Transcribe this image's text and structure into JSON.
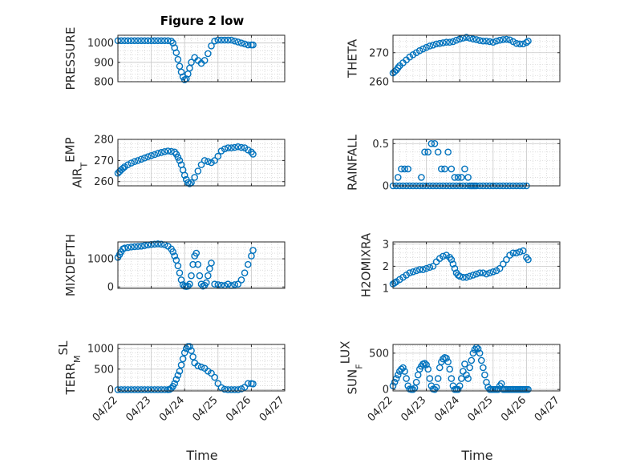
{
  "figure": {
    "title": "Figure 2 low",
    "xlabel": "Time"
  },
  "x_ticks": [
    "04/22",
    "04/23",
    "04/24",
    "04/25",
    "04/26",
    "04/27"
  ],
  "style": {
    "marker_color": "#0072BD",
    "grid_color": "#c8c8c8",
    "axis_color": "#262626"
  },
  "chart_data": [
    {
      "type": "scatter",
      "ylabel": "PRESSURE",
      "ylim": [
        800,
        1040
      ],
      "yticks": [
        800,
        900,
        1000
      ],
      "grid": true,
      "x": [
        0.0,
        0.1,
        0.2,
        0.3,
        0.4,
        0.5,
        0.6,
        0.7,
        0.8,
        0.9,
        1.0,
        1.1,
        1.2,
        1.3,
        1.4,
        1.5,
        1.6,
        1.65,
        1.7,
        1.75,
        1.8,
        1.85,
        1.9,
        1.95,
        2.0,
        2.05,
        2.1,
        2.15,
        2.2,
        2.3,
        2.4,
        2.5,
        2.6,
        2.7,
        2.8,
        2.9,
        3.0,
        3.1,
        3.2,
        3.3,
        3.4,
        3.5,
        3.6,
        3.7,
        3.8,
        3.9,
        4.0,
        4.05
      ],
      "y": [
        1012,
        1012,
        1012,
        1012,
        1012,
        1012,
        1012,
        1012,
        1012,
        1012,
        1012,
        1012,
        1012,
        1012,
        1012,
        1012,
        1010,
        1000,
        975,
        950,
        915,
        880,
        850,
        825,
        810,
        815,
        840,
        870,
        900,
        925,
        910,
        895,
        910,
        945,
        985,
        1010,
        1015,
        1015,
        1015,
        1015,
        1015,
        1010,
        1005,
        1000,
        995,
        990,
        990,
        990
      ]
    },
    {
      "type": "scatter",
      "ylabel": "THETA",
      "ylim": [
        260,
        276
      ],
      "yticks": [
        260,
        270
      ],
      "grid": true,
      "x": [
        0.0,
        0.05,
        0.1,
        0.15,
        0.2,
        0.3,
        0.4,
        0.5,
        0.6,
        0.7,
        0.8,
        0.9,
        1.0,
        1.1,
        1.2,
        1.3,
        1.4,
        1.5,
        1.6,
        1.7,
        1.8,
        1.9,
        2.0,
        2.1,
        2.2,
        2.3,
        2.4,
        2.5,
        2.6,
        2.7,
        2.8,
        2.9,
        3.0,
        3.1,
        3.2,
        3.3,
        3.4,
        3.5,
        3.6,
        3.7,
        3.8,
        3.9,
        4.0,
        4.05
      ],
      "y": [
        263,
        263.5,
        264,
        264.8,
        265.5,
        266.5,
        267.5,
        268.5,
        269.3,
        270,
        270.7,
        271.3,
        271.8,
        272.3,
        272.6,
        273,
        273.2,
        273.4,
        273.6,
        273.6,
        273.8,
        274.3,
        274.7,
        275,
        275.3,
        275,
        274.7,
        274.5,
        274.2,
        274,
        274,
        273.8,
        273.6,
        274,
        274.3,
        274.5,
        274.6,
        274.4,
        273.8,
        273.2,
        273,
        273,
        273.5,
        274
      ]
    },
    {
      "type": "scatter",
      "ylabel": "AIR_TEMP",
      "ylim": [
        258,
        280
      ],
      "yticks": [
        260,
        270,
        280
      ],
      "grid": true,
      "x": [
        0.0,
        0.05,
        0.1,
        0.15,
        0.2,
        0.3,
        0.4,
        0.5,
        0.6,
        0.7,
        0.8,
        0.9,
        1.0,
        1.1,
        1.2,
        1.3,
        1.4,
        1.5,
        1.6,
        1.7,
        1.75,
        1.8,
        1.85,
        1.9,
        1.95,
        2.0,
        2.05,
        2.1,
        2.15,
        2.2,
        2.3,
        2.4,
        2.5,
        2.6,
        2.7,
        2.8,
        2.9,
        3.0,
        3.1,
        3.2,
        3.3,
        3.4,
        3.5,
        3.6,
        3.7,
        3.8,
        3.9,
        4.0,
        4.05
      ],
      "y": [
        264,
        264.8,
        265.6,
        266.3,
        267,
        268,
        268.8,
        269.5,
        270,
        270.6,
        271.2,
        271.8,
        272.3,
        272.8,
        273.4,
        273.8,
        274.2,
        274.5,
        274.3,
        274,
        273,
        271.5,
        270,
        268,
        265.5,
        263,
        261,
        259.5,
        259,
        259.5,
        262,
        265,
        268,
        270,
        269.5,
        269,
        270,
        272,
        274.5,
        275.5,
        276,
        276,
        276.2,
        276.5,
        276.2,
        276,
        275,
        274,
        273
      ]
    },
    {
      "type": "scatter",
      "ylabel": "RAINFALL",
      "ylim": [
        0,
        0.55
      ],
      "yticks": [
        0,
        0.5
      ],
      "grid": true,
      "x": [
        0.0,
        0.1,
        0.2,
        0.3,
        0.4,
        0.5,
        0.6,
        0.7,
        0.8,
        0.9,
        1.0,
        1.1,
        1.2,
        1.3,
        1.4,
        1.5,
        1.6,
        1.7,
        1.8,
        1.9,
        2.0,
        2.1,
        2.2,
        2.3,
        2.4,
        2.5,
        2.6,
        2.7,
        2.8,
        2.9,
        3.0,
        3.1,
        3.2,
        3.3,
        3.4,
        3.5,
        3.6,
        3.7,
        3.8,
        3.9,
        4.0,
        0.15,
        0.25,
        0.35,
        0.45,
        0.85,
        0.95,
        1.05,
        1.15,
        1.25,
        1.35,
        1.45,
        1.55,
        1.65,
        1.75,
        1.85,
        1.95,
        2.05,
        2.15,
        2.25,
        2.35,
        2.45
      ],
      "y": [
        0,
        0,
        0,
        0,
        0,
        0,
        0,
        0,
        0,
        0,
        0,
        0,
        0,
        0,
        0,
        0,
        0,
        0,
        0,
        0,
        0,
        0,
        0,
        0,
        0,
        0,
        0,
        0,
        0,
        0,
        0,
        0,
        0,
        0,
        0,
        0,
        0,
        0,
        0,
        0,
        0,
        0.1,
        0.2,
        0.2,
        0.2,
        0.1,
        0.4,
        0.4,
        0.5,
        0.5,
        0.4,
        0.2,
        0.2,
        0.4,
        0.2,
        0.1,
        0.1,
        0.1,
        0.2,
        0.1,
        0,
        0
      ]
    },
    {
      "type": "scatter",
      "ylabel": "MIXDEPTH",
      "ylim": [
        -50,
        1600
      ],
      "yticks": [
        0,
        1000
      ],
      "grid": true,
      "x": [
        0.0,
        0.05,
        0.1,
        0.15,
        0.2,
        0.3,
        0.4,
        0.5,
        0.6,
        0.7,
        0.8,
        0.9,
        1.0,
        1.1,
        1.2,
        1.3,
        1.4,
        1.5,
        1.6,
        1.65,
        1.7,
        1.75,
        1.8,
        1.85,
        1.9,
        1.95,
        2.0,
        2.05,
        2.1,
        2.15,
        2.2,
        2.25,
        2.3,
        2.35,
        2.4,
        2.45,
        2.5,
        2.55,
        2.6,
        2.65,
        2.7,
        2.75,
        2.8,
        2.9,
        3.0,
        3.1,
        3.2,
        3.3,
        3.4,
        3.5,
        3.6,
        3.7,
        3.8,
        3.9,
        4.0,
        4.05
      ],
      "y": [
        1050,
        1150,
        1250,
        1350,
        1380,
        1400,
        1420,
        1430,
        1440,
        1450,
        1470,
        1490,
        1510,
        1520,
        1530,
        1520,
        1500,
        1450,
        1350,
        1250,
        1100,
        950,
        750,
        500,
        250,
        80,
        30,
        20,
        30,
        100,
        400,
        800,
        1100,
        1200,
        800,
        400,
        100,
        30,
        60,
        150,
        400,
        650,
        850,
        100,
        80,
        60,
        50,
        100,
        50,
        80,
        100,
        250,
        500,
        800,
        1100,
        1300
      ]
    },
    {
      "type": "scatter",
      "ylabel": "H2OMIXRA",
      "ylim": [
        1,
        3.1
      ],
      "yticks": [
        1,
        2,
        3
      ],
      "grid": true,
      "x": [
        0.0,
        0.05,
        0.1,
        0.2,
        0.3,
        0.4,
        0.5,
        0.6,
        0.7,
        0.8,
        0.9,
        1.0,
        1.1,
        1.2,
        1.3,
        1.4,
        1.5,
        1.6,
        1.7,
        1.75,
        1.8,
        1.85,
        1.9,
        1.95,
        2.0,
        2.1,
        2.2,
        2.3,
        2.4,
        2.5,
        2.6,
        2.7,
        2.8,
        2.9,
        3.0,
        3.1,
        3.2,
        3.3,
        3.4,
        3.5,
        3.6,
        3.7,
        3.8,
        3.9,
        4.0,
        4.05
      ],
      "y": [
        1.2,
        1.25,
        1.3,
        1.4,
        1.5,
        1.6,
        1.7,
        1.75,
        1.8,
        1.85,
        1.85,
        1.9,
        1.95,
        2.0,
        2.2,
        2.35,
        2.45,
        2.5,
        2.4,
        2.3,
        2.1,
        1.9,
        1.7,
        1.6,
        1.55,
        1.5,
        1.5,
        1.55,
        1.6,
        1.65,
        1.7,
        1.7,
        1.65,
        1.7,
        1.75,
        1.8,
        1.9,
        2.1,
        2.3,
        2.5,
        2.6,
        2.6,
        2.65,
        2.7,
        2.4,
        2.3
      ]
    },
    {
      "type": "scatter",
      "ylabel": "TERR_MSL",
      "ylim": [
        -30,
        1100
      ],
      "yticks": [
        0,
        500,
        1000
      ],
      "grid": true,
      "x": [
        0.0,
        0.1,
        0.2,
        0.3,
        0.4,
        0.5,
        0.6,
        0.7,
        0.8,
        0.9,
        1.0,
        1.1,
        1.2,
        1.3,
        1.4,
        1.5,
        1.55,
        1.6,
        1.65,
        1.7,
        1.75,
        1.8,
        1.85,
        1.9,
        1.95,
        2.0,
        2.05,
        2.1,
        2.15,
        2.2,
        2.25,
        2.3,
        2.4,
        2.5,
        2.6,
        2.7,
        2.8,
        2.9,
        3.0,
        3.1,
        3.2,
        3.3,
        3.4,
        3.5,
        3.6,
        3.7,
        3.8,
        3.9,
        4.0,
        4.05
      ],
      "y": [
        0,
        0,
        0,
        0,
        0,
        0,
        0,
        0,
        0,
        0,
        0,
        0,
        0,
        0,
        0,
        0,
        5,
        30,
        80,
        150,
        250,
        350,
        450,
        600,
        750,
        900,
        1000,
        1050,
        1050,
        950,
        800,
        650,
        580,
        550,
        520,
        450,
        400,
        300,
        150,
        50,
        10,
        0,
        0,
        0,
        0,
        20,
        60,
        150,
        150,
        140
      ]
    },
    {
      "type": "scatter",
      "ylabel": "SUN_FLUX",
      "ylim": [
        -20,
        620
      ],
      "yticks": [
        0,
        500
      ],
      "grid": true,
      "x": [
        0.0,
        0.05,
        0.1,
        0.15,
        0.2,
        0.25,
        0.3,
        0.35,
        0.4,
        0.45,
        0.5,
        0.55,
        0.6,
        0.65,
        0.7,
        0.75,
        0.8,
        0.85,
        0.9,
        0.95,
        1.0,
        1.05,
        1.1,
        1.15,
        1.2,
        1.25,
        1.3,
        1.35,
        1.4,
        1.45,
        1.5,
        1.55,
        1.6,
        1.65,
        1.7,
        1.75,
        1.8,
        1.85,
        1.9,
        1.95,
        2.0,
        2.05,
        2.1,
        2.15,
        2.2,
        2.25,
        2.3,
        2.35,
        2.4,
        2.45,
        2.5,
        2.55,
        2.6,
        2.65,
        2.7,
        2.75,
        2.8,
        2.85,
        2.9,
        2.95,
        3.0,
        3.05,
        3.1,
        3.15,
        3.2,
        3.25,
        3.3,
        3.35,
        3.4,
        3.45,
        3.5,
        3.55,
        3.6,
        3.65,
        3.7,
        3.75,
        3.8,
        3.85,
        3.9,
        3.95,
        4.0,
        4.05
      ],
      "y": [
        50,
        100,
        150,
        200,
        250,
        280,
        300,
        250,
        150,
        50,
        5,
        0,
        0,
        20,
        100,
        200,
        280,
        320,
        350,
        360,
        340,
        280,
        150,
        50,
        5,
        0,
        30,
        150,
        300,
        380,
        420,
        440,
        430,
        380,
        280,
        150,
        50,
        0,
        0,
        0,
        50,
        150,
        250,
        350,
        200,
        150,
        300,
        400,
        500,
        550,
        580,
        560,
        500,
        400,
        300,
        200,
        100,
        30,
        0,
        0,
        0,
        0,
        0,
        0,
        50,
        80,
        0,
        0,
        0,
        0,
        0,
        0,
        0,
        0,
        0,
        0,
        0,
        0,
        0,
        0,
        0,
        0
      ]
    }
  ]
}
